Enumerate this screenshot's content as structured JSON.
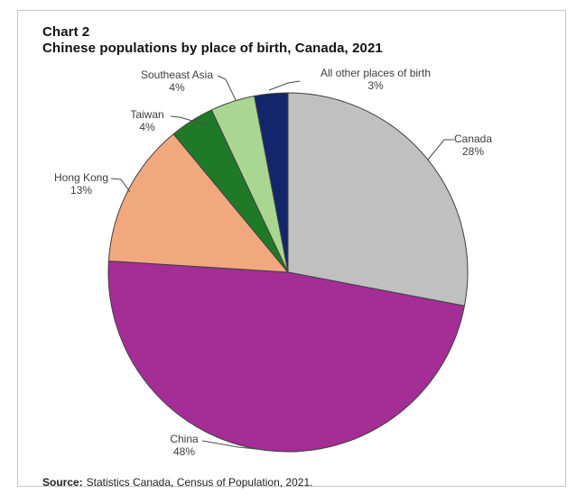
{
  "header": {
    "chart_number": "Chart 2",
    "title": "Chinese populations by place of birth, Canada, 2021"
  },
  "footer": {
    "source_label": "Source:",
    "source_text": "Statistics Canada, Census of Population, 2021."
  },
  "chart_data": {
    "type": "pie",
    "title": "Chinese populations by place of birth, Canada, 2021",
    "start_angle_deg": 0,
    "direction": "clockwise",
    "legend": "none",
    "stroke_color": "#404040",
    "leader_line_color": "#4a4a4a",
    "slices": [
      {
        "name": "Canada",
        "value": 28,
        "pct": "28%",
        "color": "#c0c0c0"
      },
      {
        "name": "China",
        "value": 48,
        "pct": "48%",
        "color": "#a42d96"
      },
      {
        "name": "Hong Kong",
        "value": 13,
        "pct": "13%",
        "color": "#f2a87e"
      },
      {
        "name": "Taiwan",
        "value": 4,
        "pct": "4%",
        "color": "#1f7a28"
      },
      {
        "name": "Southeast Asia",
        "value": 4,
        "pct": "4%",
        "color": "#a9d690"
      },
      {
        "name": "All other places of birth",
        "value": 3,
        "pct": "3%",
        "color": "#13266b"
      }
    ]
  }
}
